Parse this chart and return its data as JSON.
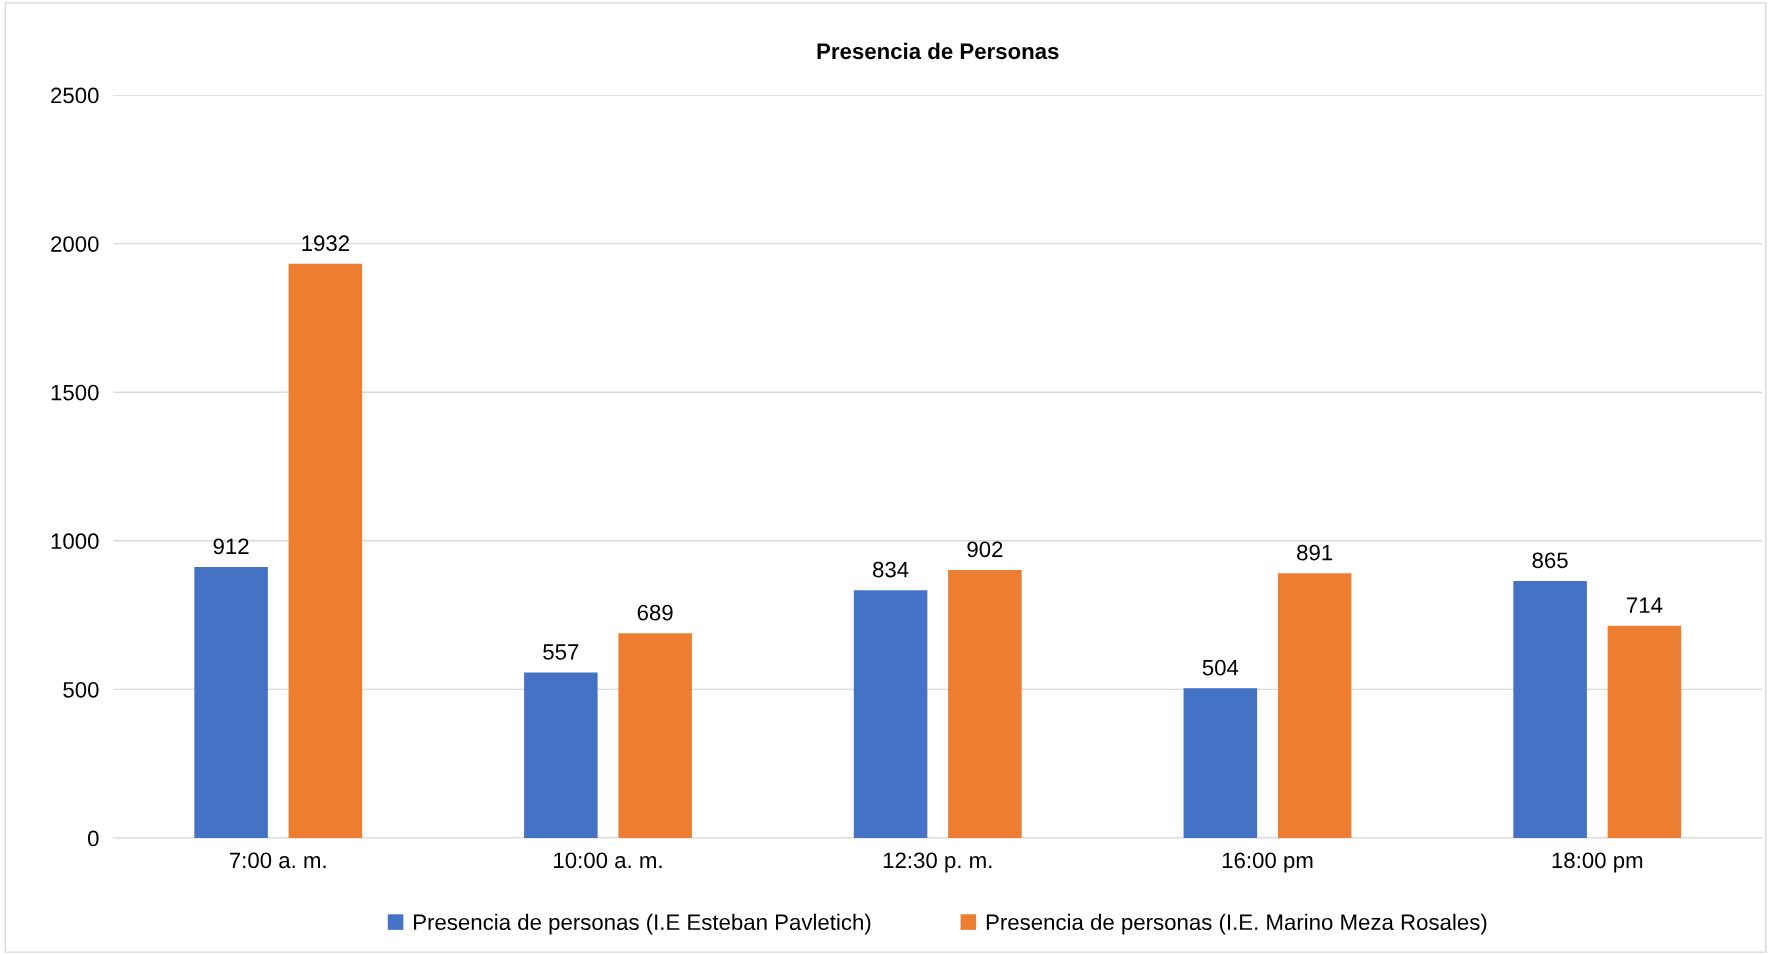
{
  "chart_data": {
    "type": "bar",
    "title": "Presencia de Personas",
    "categories": [
      "7:00 a. m.",
      "10:00 a. m.",
      "12:30 p. m.",
      "16:00 pm",
      "18:00 pm"
    ],
    "series": [
      {
        "name": "Presencia de personas (I.E Esteban Pavletich)",
        "color": "#4472c4",
        "values": [
          912,
          557,
          834,
          504,
          865
        ]
      },
      {
        "name": "Presencia de personas (I.E. Marino Meza Rosales)",
        "color": "#ed7d31",
        "values": [
          1932,
          689,
          902,
          891,
          714
        ]
      }
    ],
    "ylim": [
      0,
      2500
    ],
    "yticks": [
      0,
      500,
      1000,
      1500,
      2000,
      2500
    ],
    "grid": "y",
    "legend": "bottom",
    "data_labels": true
  }
}
